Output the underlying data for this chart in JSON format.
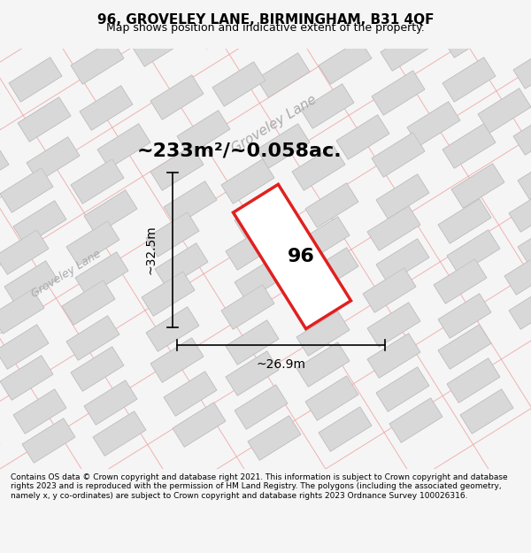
{
  "title_line1": "96, GROVELEY LANE, BIRMINGHAM, B31 4QF",
  "title_line2": "Map shows position and indicative extent of the property.",
  "area_label": "~233m²/~0.058ac.",
  "dim_height": "~32.5m",
  "dim_width": "~26.9m",
  "property_number": "96",
  "street_name1": "Groveley Lane",
  "street_name2": "Groveley Lane",
  "copyright_text": "Contains OS data © Crown copyright and database right 2021. This information is subject to Crown copyright and database rights 2023 and is reproduced with the permission of HM Land Registry. The polygons (including the associated geometry, namely x, y co-ordinates) are subject to Crown copyright and database rights 2023 Ordnance Survey 100026316.",
  "bg_color": "#f5f5f5",
  "map_bg": "#f0eeee",
  "title_bg": "#ffffff",
  "footer_bg": "#ffffff",
  "red_color": "#e02020",
  "gray_block_color": "#d8d8d8",
  "gray_block_edge": "#c0c0c0",
  "pink_line_color": "#f0a0a0",
  "road_line_color": "#cccccc"
}
